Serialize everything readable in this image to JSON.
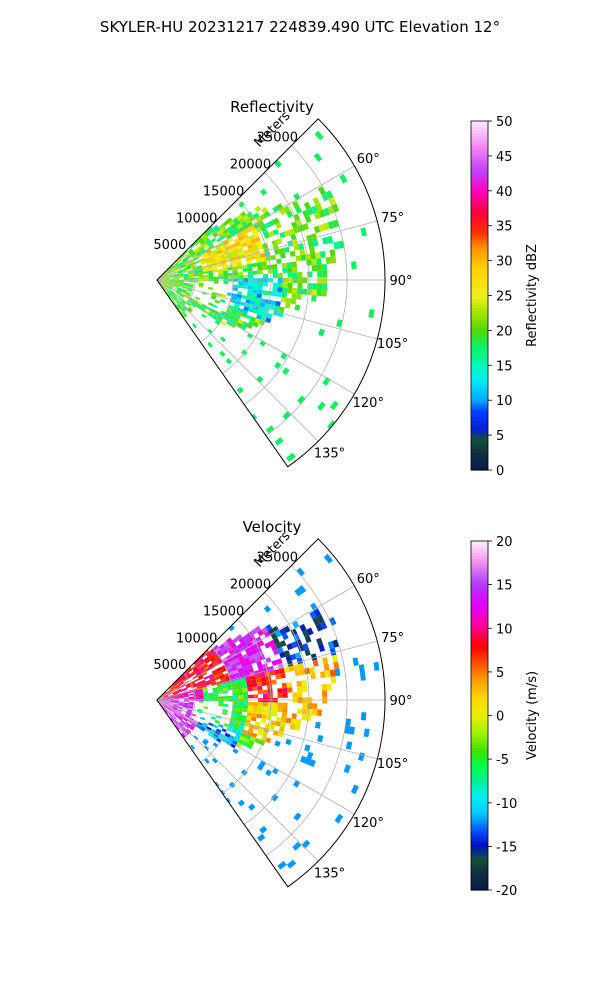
{
  "figure": {
    "suptitle": "SKYLER-HU  20231217  224839.490 UTC Elevation 12°"
  },
  "chart_data": [
    {
      "type": "heatmap",
      "projection": "polar-sector",
      "title": "Reflectivity",
      "radial_axis": {
        "label": "Meters",
        "ticks": [
          5000,
          10000,
          15000,
          20000,
          25000
        ],
        "tick_labels": [
          "5000",
          "10000",
          "15000",
          "20000",
          "25000"
        ],
        "rlim": [
          0,
          30000
        ]
      },
      "angular_axis": {
        "ticks": [
          60,
          75,
          90,
          105,
          120,
          135
        ],
        "tick_labels": [
          "60°",
          "75°",
          "90°",
          "105°",
          "120°",
          "135°"
        ],
        "thetalim": [
          45,
          145
        ],
        "grid": true
      },
      "colorbar": {
        "label": "Reflectivity dBZ",
        "range": [
          0,
          50
        ],
        "ticks": [
          0,
          5,
          10,
          15,
          20,
          25,
          30,
          35,
          40,
          45,
          50
        ],
        "tick_labels": [
          "0",
          "5",
          "10",
          "15",
          "20",
          "25",
          "30",
          "35",
          "40",
          "45",
          "50"
        ]
      }
    },
    {
      "type": "heatmap",
      "projection": "polar-sector",
      "title": "Velocity",
      "radial_axis": {
        "label": "Meters",
        "ticks": [
          5000,
          10000,
          15000,
          20000,
          25000
        ],
        "tick_labels": [
          "5000",
          "10000",
          "15000",
          "20000",
          "25000"
        ],
        "rlim": [
          0,
          30000
        ]
      },
      "angular_axis": {
        "ticks": [
          60,
          75,
          90,
          105,
          120,
          135
        ],
        "tick_labels": [
          "60°",
          "75°",
          "90°",
          "105°",
          "120°",
          "135°"
        ],
        "thetalim": [
          45,
          145
        ],
        "grid": true
      },
      "colorbar": {
        "label": "Velocity (m/s)",
        "range": [
          -20,
          20
        ],
        "ticks": [
          -20,
          -15,
          -10,
          -5,
          0,
          5,
          10,
          15,
          20
        ],
        "tick_labels": [
          "-20",
          "-15",
          "-10",
          "-5",
          "0",
          "5",
          "10",
          "15",
          "20"
        ]
      }
    }
  ]
}
